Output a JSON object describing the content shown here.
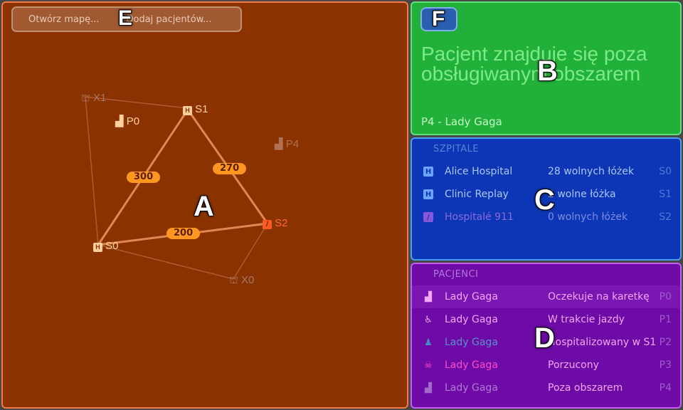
{
  "toolbar": {
    "open_map": "Otwórz mapę...",
    "add_patients": "Dodaj pacjentów..."
  },
  "map": {
    "nodes": [
      {
        "id": "X1",
        "label": "X1",
        "kind": "depot"
      },
      {
        "id": "S1",
        "label": "S1",
        "kind": "hospital"
      },
      {
        "id": "P0",
        "label": "P0",
        "kind": "patient"
      },
      {
        "id": "P4",
        "label": "P4",
        "kind": "patient-faded"
      },
      {
        "id": "S2",
        "label": "S2",
        "kind": "hospital-full"
      },
      {
        "id": "S0",
        "label": "S0",
        "kind": "hospital"
      },
      {
        "id": "X0",
        "label": "X0",
        "kind": "depot"
      }
    ],
    "edge_labels": [
      "300",
      "270",
      "200"
    ]
  },
  "status": {
    "message": "Pacjent znajduje się poza obsługiwanym obszarem",
    "patient": "P4 - Lady Gaga"
  },
  "hospitals": {
    "title": "SZPITALE",
    "rows": [
      {
        "icon": "hospital-icon",
        "name": "Alice Hospital",
        "beds": "28 wolnych łóżek",
        "code": "S0"
      },
      {
        "icon": "hospital-icon",
        "name": "Clinic Replay",
        "beds": "2 wolne łóżka",
        "code": "S1"
      },
      {
        "icon": "hospital-full-icon",
        "name": "Hospitalé 911",
        "beds": "0 wolnych łóżek",
        "code": "S2"
      }
    ]
  },
  "patients": {
    "title": "PACJENCI",
    "rows": [
      {
        "icon": "waiting-patient-icon",
        "name": "Lady Gaga",
        "status": "Oczekuje na karetkę",
        "code": "P0",
        "color": "#f0a8f7"
      },
      {
        "icon": "transport-patient-icon",
        "name": "Lady Gaga",
        "status": "W trakcie jazdy",
        "code": "P1",
        "color": "#f0a8f7"
      },
      {
        "icon": "hospitalized-patient-icon",
        "name": "Lady Gaga",
        "status": "Hospitalizowany w S1",
        "code": "P2",
        "color": "#5b8fd0"
      },
      {
        "icon": "abandoned-patient-icon",
        "name": "Lady Gaga",
        "status": "Porzucony",
        "code": "P3",
        "color": "#ff49c6"
      },
      {
        "icon": "outside-patient-icon",
        "name": "Lady Gaga",
        "status": "Poza obszarem",
        "code": "P4",
        "color": "#c88ee0"
      }
    ]
  },
  "overlay_letters": [
    "A",
    "B",
    "C",
    "D",
    "E",
    "F"
  ],
  "colors": {
    "map_bg": "#8a3300",
    "status_bg": "#21b13a",
    "hospitals_bg": "#0c36b5",
    "patients_bg": "#6e0aa6",
    "edge": "#d9773e",
    "badge": "#ff9620"
  }
}
